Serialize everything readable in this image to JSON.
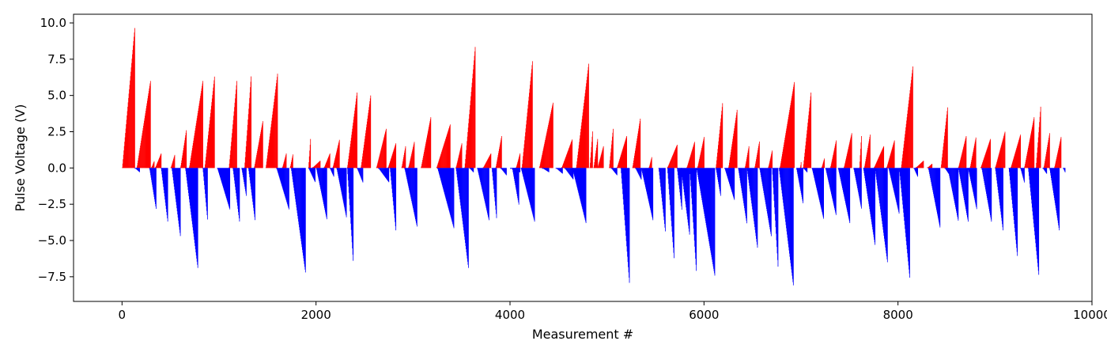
{
  "chart_data": {
    "type": "bar",
    "title": "",
    "xlabel": "Measurement #",
    "ylabel": "Pulse Voltage (V)",
    "xlim": [
      -500,
      10000
    ],
    "ylim": [
      -9.2,
      10.6
    ],
    "xticks": [
      0,
      2000,
      4000,
      6000,
      8000,
      10000
    ],
    "xtick_labels": [
      "0",
      "2000",
      "4000",
      "6000",
      "8000",
      "10000"
    ],
    "yticks": [
      -7.5,
      -5.0,
      -2.5,
      0.0,
      2.5,
      5.0,
      7.5,
      10.0
    ],
    "ytick_labels": [
      "−7.5",
      "−5.0",
      "−2.5",
      "0.0",
      "2.5",
      "5.0",
      "7.5",
      "10.0"
    ],
    "grid": false,
    "legend": "none",
    "colors": {
      "positive": "#ff0000",
      "negative": "#0000ff"
    },
    "series": [
      {
        "sign": "positive",
        "ramps": [
          [
            0,
            130,
            9.8
          ],
          [
            150,
            290,
            6.0
          ],
          [
            300,
            330,
            0.5
          ],
          [
            340,
            400,
            1.0
          ],
          [
            500,
            540,
            0.9
          ],
          [
            600,
            660,
            2.6
          ],
          [
            690,
            830,
            6.0
          ],
          [
            850,
            950,
            6.3
          ],
          [
            1100,
            1180,
            6.0
          ],
          [
            1260,
            1330,
            6.5
          ],
          [
            1360,
            1450,
            3.3
          ],
          [
            1480,
            1600,
            6.5
          ],
          [
            1650,
            1690,
            1.0
          ],
          [
            1730,
            1760,
            1.0
          ],
          [
            1920,
            1940,
            2.0
          ],
          [
            1960,
            2040,
            0.5
          ],
          [
            2080,
            2140,
            1.0
          ],
          [
            2170,
            2240,
            2.0
          ],
          [
            2320,
            2420,
            5.2
          ],
          [
            2460,
            2560,
            5.0
          ],
          [
            2620,
            2720,
            2.7
          ],
          [
            2740,
            2820,
            1.7
          ],
          [
            2880,
            2920,
            1.5
          ],
          [
            2950,
            3010,
            1.8
          ],
          [
            3080,
            3180,
            3.5
          ],
          [
            3240,
            3380,
            3.0
          ],
          [
            3440,
            3500,
            1.7
          ],
          [
            3530,
            3640,
            8.5
          ],
          [
            3720,
            3800,
            1.0
          ],
          [
            3850,
            3910,
            2.2
          ],
          [
            4060,
            4100,
            1.0
          ],
          [
            4120,
            4230,
            7.5
          ],
          [
            4300,
            4440,
            4.5
          ],
          [
            4530,
            4640,
            2.0
          ],
          [
            4680,
            4810,
            7.3
          ],
          [
            4820,
            4850,
            2.7
          ],
          [
            4860,
            4900,
            2.0
          ],
          [
            4900,
            4960,
            1.5
          ],
          [
            5020,
            5060,
            2.7
          ],
          [
            5100,
            5200,
            2.2
          ],
          [
            5260,
            5340,
            3.4
          ],
          [
            5430,
            5460,
            0.8
          ],
          [
            5620,
            5720,
            1.6
          ],
          [
            5820,
            5900,
            1.8
          ],
          [
            5930,
            6000,
            2.2
          ],
          [
            6120,
            6190,
            4.6
          ],
          [
            6250,
            6340,
            4.1
          ],
          [
            6420,
            6460,
            1.5
          ],
          [
            6520,
            6570,
            1.9
          ],
          [
            6660,
            6700,
            1.2
          ],
          [
            6780,
            6930,
            6.0
          ],
          [
            6990,
            7000,
            0.5
          ],
          [
            7020,
            7100,
            5.2
          ],
          [
            7210,
            7240,
            0.7
          ],
          [
            7300,
            7360,
            1.9
          ],
          [
            7440,
            7520,
            2.4
          ],
          [
            7600,
            7620,
            2.2
          ],
          [
            7650,
            7710,
            2.3
          ],
          [
            7750,
            7850,
            1.5
          ],
          [
            7880,
            7960,
            1.9
          ],
          [
            8030,
            8150,
            7.0
          ],
          [
            8180,
            8260,
            0.5
          ],
          [
            8300,
            8350,
            0.3
          ],
          [
            8440,
            8510,
            4.3
          ],
          [
            8620,
            8700,
            2.2
          ],
          [
            8740,
            8800,
            2.1
          ],
          [
            8850,
            8950,
            2.0
          ],
          [
            9000,
            9100,
            2.5
          ],
          [
            9160,
            9260,
            2.3
          ],
          [
            9300,
            9400,
            3.5
          ],
          [
            9420,
            9470,
            4.4
          ],
          [
            9500,
            9560,
            2.4
          ],
          [
            9610,
            9680,
            2.2
          ]
        ]
      },
      {
        "sign": "negative",
        "ramps": [
          [
            130,
            180,
            0.3
          ],
          [
            280,
            350,
            2.9
          ],
          [
            400,
            470,
            3.8
          ],
          [
            510,
            600,
            4.8
          ],
          [
            650,
            780,
            7.0
          ],
          [
            830,
            880,
            3.7
          ],
          [
            980,
            1110,
            2.9
          ],
          [
            1140,
            1210,
            3.8
          ],
          [
            1230,
            1280,
            2.0
          ],
          [
            1300,
            1370,
            3.7
          ],
          [
            1590,
            1720,
            2.9
          ],
          [
            1740,
            1890,
            7.3
          ],
          [
            1920,
            1990,
            1.0
          ],
          [
            2000,
            2110,
            3.6
          ],
          [
            2140,
            2180,
            0.6
          ],
          [
            2210,
            2310,
            3.4
          ],
          [
            2320,
            2380,
            6.4
          ],
          [
            2420,
            2480,
            1.0
          ],
          [
            2640,
            2750,
            1.0
          ],
          [
            2760,
            2820,
            4.3
          ],
          [
            2910,
            3040,
            4.1
          ],
          [
            3250,
            3420,
            4.2
          ],
          [
            3440,
            3570,
            7.0
          ],
          [
            3580,
            3620,
            0.3
          ],
          [
            3660,
            3780,
            3.6
          ],
          [
            3810,
            3860,
            3.6
          ],
          [
            3900,
            3960,
            0.5
          ],
          [
            4000,
            4100,
            0.3
          ],
          [
            4020,
            4090,
            2.6
          ],
          [
            4110,
            4250,
            3.7
          ],
          [
            4330,
            4400,
            0.3
          ],
          [
            4470,
            4540,
            0.4
          ],
          [
            4560,
            4650,
            0.8
          ],
          [
            4640,
            4780,
            3.8
          ],
          [
            5040,
            5100,
            0.5
          ],
          [
            5140,
            5230,
            8.1
          ],
          [
            5290,
            5350,
            0.8
          ],
          [
            5350,
            5470,
            3.6
          ],
          [
            5530,
            5600,
            4.5
          ],
          [
            5620,
            5690,
            6.4
          ],
          [
            5720,
            5770,
            3.0
          ],
          [
            5760,
            5850,
            4.7
          ],
          [
            5850,
            5920,
            7.3
          ],
          [
            5920,
            6110,
            7.5
          ],
          [
            6120,
            6170,
            2.0
          ],
          [
            6210,
            6310,
            2.2
          ],
          [
            6350,
            6440,
            3.9
          ],
          [
            6440,
            6550,
            5.6
          ],
          [
            6570,
            6690,
            4.7
          ],
          [
            6700,
            6760,
            6.8
          ],
          [
            6770,
            6920,
            8.2
          ],
          [
            6950,
            7020,
            2.5
          ],
          [
            7020,
            7060,
            0.3
          ],
          [
            7110,
            7230,
            3.5
          ],
          [
            7250,
            7360,
            3.3
          ],
          [
            7380,
            7500,
            3.8
          ],
          [
            7540,
            7620,
            2.8
          ],
          [
            7640,
            7760,
            5.3
          ],
          [
            7760,
            7890,
            6.6
          ],
          [
            7900,
            8010,
            3.2
          ],
          [
            8010,
            8120,
            7.7
          ],
          [
            8160,
            8200,
            0.6
          ],
          [
            8310,
            8430,
            4.1
          ],
          [
            8480,
            8520,
            0.4
          ],
          [
            8510,
            8620,
            3.7
          ],
          [
            8620,
            8720,
            3.7
          ],
          [
            8720,
            8810,
            2.9
          ],
          [
            8860,
            8960,
            3.7
          ],
          [
            9000,
            9080,
            4.3
          ],
          [
            9140,
            9230,
            6.2
          ],
          [
            9260,
            9300,
            1.0
          ],
          [
            9340,
            9450,
            7.5
          ],
          [
            9490,
            9530,
            0.4
          ],
          [
            9560,
            9660,
            4.3
          ],
          [
            9700,
            9720,
            0.3
          ]
        ]
      }
    ]
  }
}
